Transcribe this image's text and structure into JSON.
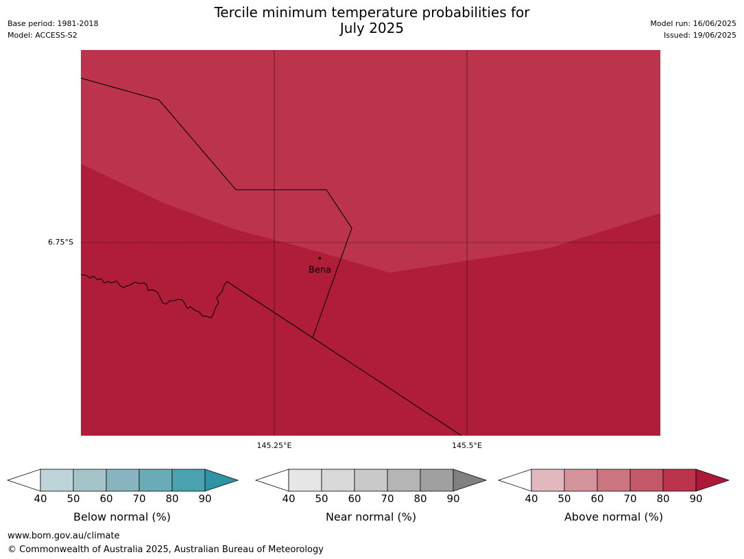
{
  "header": {
    "title_line1": "Tercile minimum temperature probabilities for",
    "title_line2": "July 2025",
    "base_period": "Base period: 1981-2018",
    "model": "Model: ACCESS-S2",
    "model_run": "Model run: 16/06/2025",
    "issued": "Issued: 19/06/2025"
  },
  "map": {
    "latitude_label": "6.75°S",
    "longitude_labels": [
      "145.25°E",
      "145.5°E"
    ],
    "town": "Bena",
    "region_colors": {
      "above_80_90": "#b01d39",
      "above_70_80": "#bc344b"
    }
  },
  "legends": [
    {
      "name": "Below normal (%)",
      "ticks": [
        "40",
        "50",
        "60",
        "70",
        "80",
        "90"
      ],
      "colors": [
        "#ffffff",
        "#bdd4d9",
        "#a5c4ca",
        "#88b4c0",
        "#6aabb8",
        "#4aa2b0",
        "#2f95a3"
      ]
    },
    {
      "name": "Near normal (%)",
      "ticks": [
        "40",
        "50",
        "60",
        "70",
        "80",
        "90"
      ],
      "colors": [
        "#ffffff",
        "#e6e6e6",
        "#d9d9d9",
        "#c9c9c9",
        "#b5b5b5",
        "#a0a0a0",
        "#808080"
      ]
    },
    {
      "name": "Above normal (%)",
      "ticks": [
        "40",
        "50",
        "60",
        "70",
        "80",
        "90"
      ],
      "colors": [
        "#ffffff",
        "#e0b8be",
        "#d5939c",
        "#cb7680",
        "#c25868",
        "#bc344b",
        "#ad1838"
      ]
    }
  ],
  "footer": {
    "url": "www.bom.gov.au/climate",
    "copyright": "© Commonwealth of Australia 2025, Australian Bureau of Meteorology"
  }
}
